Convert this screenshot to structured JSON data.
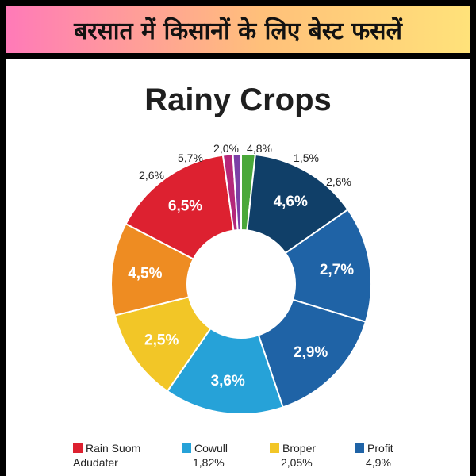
{
  "banner": {
    "title": "बरसात में किसानों के लिए बेस्ट फसलें"
  },
  "chart_data": {
    "type": "pie",
    "title": "Rainy Crops",
    "donut": true,
    "slices": [
      {
        "inner_label": "",
        "outer_label": "4,8%",
        "color": "#4aa83a",
        "share": 0.017
      },
      {
        "inner_label": "4,6%",
        "outer_label": "1,5%",
        "color": "#103f68",
        "share": 0.133
      },
      {
        "inner_label": "2,7%",
        "outer_label": "2,6%",
        "color": "#1f63a6",
        "share": 0.141
      },
      {
        "inner_label": "2,9%",
        "outer_label": "",
        "color": "#1f63a6",
        "share": 0.148
      },
      {
        "inner_label": "3,6%",
        "outer_label": "",
        "color": "#26a2d8",
        "share": 0.145
      },
      {
        "inner_label": "2,5%",
        "outer_label": "",
        "color": "#f2c627",
        "share": 0.113
      },
      {
        "inner_label": "4,5%",
        "outer_label": "",
        "color": "#ee8c22",
        "share": 0.113
      },
      {
        "inner_label": "6,5%",
        "outer_label": "2,6%",
        "color": "#dd2130",
        "share": 0.148
      },
      {
        "inner_label": "",
        "outer_label": "5,7%",
        "color": "#b4287a",
        "share": 0.012
      },
      {
        "inner_label": "",
        "outer_label": "2,0%",
        "color": "#7c3fa6",
        "share": 0.01
      }
    ],
    "legend": [
      {
        "line1": "Rain Suom",
        "line2": "Adudater",
        "color": "#dd2130"
      },
      {
        "line1": "Cowull",
        "line2": "1,82%",
        "color": "#26a2d8"
      },
      {
        "line1": "Broper",
        "line2": "2,05%",
        "color": "#f2c627"
      },
      {
        "line1": "Profit",
        "line2": "4,9%",
        "color": "#1f63a6"
      }
    ]
  }
}
